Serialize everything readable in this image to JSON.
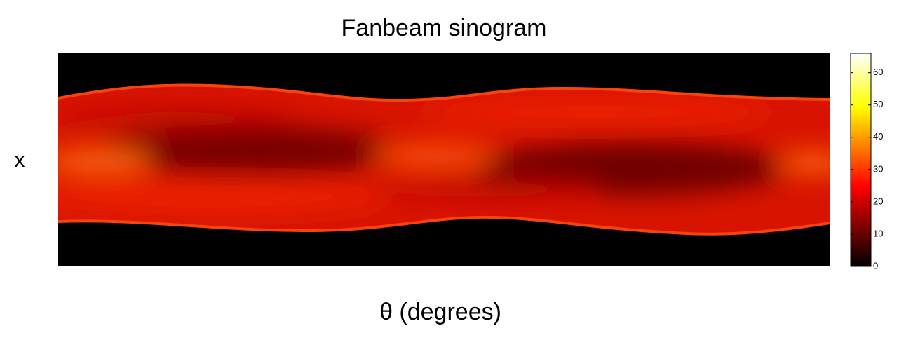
{
  "chart_data": {
    "type": "heatmap",
    "title": "Fanbeam sinogram",
    "xlabel": "θ (degrees)",
    "ylabel": "x",
    "colormap": "hot",
    "clim": [
      0,
      66
    ],
    "cticks": [
      0,
      10,
      20,
      30,
      40,
      50,
      60
    ]
  }
}
